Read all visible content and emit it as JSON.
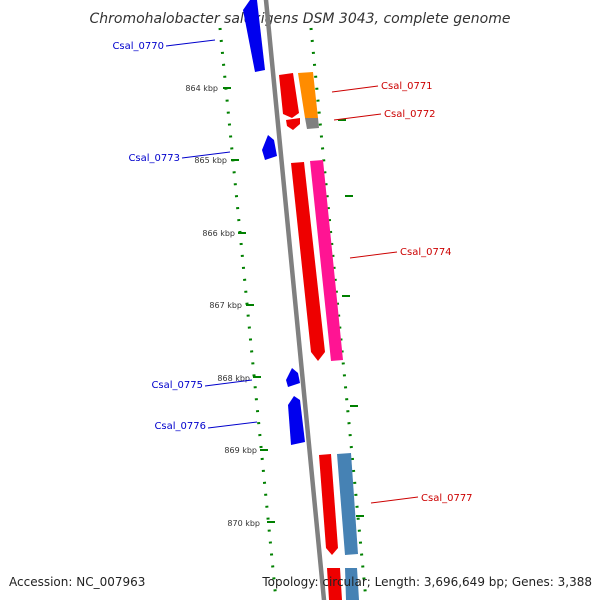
{
  "title": "Chromohalobacter salexigens DSM 3043, complete genome",
  "footer": {
    "accession": "Accession: NC_007963",
    "topology": "Topology: circular; Length: 3,696,649 bp; Genes: 3,388"
  },
  "scale": {
    "ticks": [
      "864 kbp",
      "865 kbp",
      "866 kbp",
      "867 kbp",
      "868 kbp",
      "869 kbp",
      "870 kbp"
    ]
  },
  "genes": [
    {
      "id": "Csal_0770",
      "strand": "minus",
      "color": "#0000ee"
    },
    {
      "id": "Csal_0771",
      "strand": "plus",
      "color": "#ee0000"
    },
    {
      "id": "Csal_0772",
      "strand": "plus",
      "color": "#ff8c00"
    },
    {
      "id": "Csal_0773",
      "strand": "minus",
      "color": "#0000ee"
    },
    {
      "id": "Csal_0774",
      "strand": "plus",
      "color": "#ff1493"
    },
    {
      "id": "Csal_0775",
      "strand": "minus",
      "color": "#0000ee"
    },
    {
      "id": "Csal_0776",
      "strand": "minus",
      "color": "#0000ee"
    },
    {
      "id": "Csal_0777",
      "strand": "plus",
      "color": "#4682b4"
    }
  ],
  "colors": {
    "backbone": "#808080",
    "tick_dots": "#008000",
    "minus_label": "#0000cc",
    "plus_label": "#cc0000",
    "forward_red": "#ee0000",
    "grey_segment": "#808080"
  }
}
